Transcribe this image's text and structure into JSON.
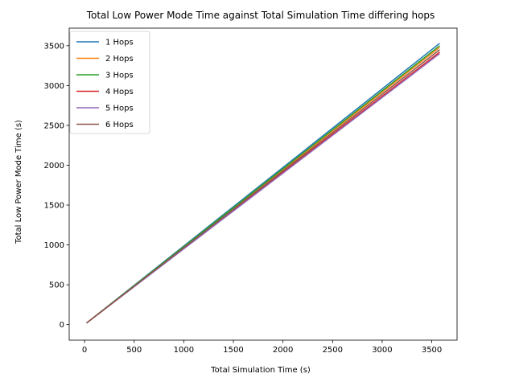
{
  "chart_data": {
    "type": "line",
    "title": "Total Low Power Mode Time against Total Simulation Time differing hops",
    "xlabel": "Total Simulation Time (s)",
    "ylabel": "Total Low Power Mode Time (s)",
    "xlim": [
      -155,
      3755
    ],
    "ylim": [
      -195,
      3720
    ],
    "xticks": [
      0,
      500,
      1000,
      1500,
      2000,
      2500,
      3000,
      3500
    ],
    "yticks": [
      0,
      500,
      1000,
      1500,
      2000,
      2500,
      3000,
      3500
    ],
    "grid": false,
    "legend_position": "upper-left",
    "series": [
      {
        "name": "1 Hops",
        "color": "#1f77b4",
        "x": [
          20,
          3580
        ],
        "y": [
          20,
          3530
        ]
      },
      {
        "name": "2 Hops",
        "color": "#ff7f0e",
        "x": [
          20,
          3580
        ],
        "y": [
          20,
          3480
        ]
      },
      {
        "name": "3 Hops",
        "color": "#2ca02c",
        "x": [
          20,
          3580
        ],
        "y": [
          20,
          3500
        ]
      },
      {
        "name": "4 Hops",
        "color": "#d62728",
        "x": [
          20,
          3580
        ],
        "y": [
          20,
          3420
        ]
      },
      {
        "name": "5 Hops",
        "color": "#9467bd",
        "x": [
          20,
          3580
        ],
        "y": [
          20,
          3400
        ]
      },
      {
        "name": "6 Hops",
        "color": "#8c564b",
        "x": [
          20,
          3580
        ],
        "y": [
          20,
          3450
        ]
      }
    ]
  }
}
